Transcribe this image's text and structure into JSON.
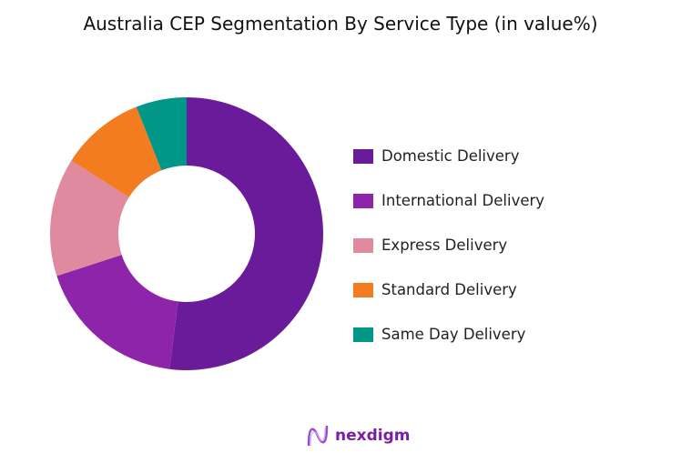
{
  "chart_data": {
    "type": "pie",
    "donut": true,
    "title": "Australia CEP  Segmentation By Service Type (in value%)",
    "categories": [
      "Domestic Delivery",
      "International Delivery",
      "Express Delivery",
      "Standard Delivery",
      "Same Day Delivery"
    ],
    "values": [
      52,
      18,
      14,
      10,
      6
    ],
    "colors": [
      "#6a1b9a",
      "#8e24aa",
      "#e08aa0",
      "#f47c20",
      "#009688"
    ],
    "legend_position": "right"
  },
  "logo": {
    "text": "nexdigm"
  }
}
